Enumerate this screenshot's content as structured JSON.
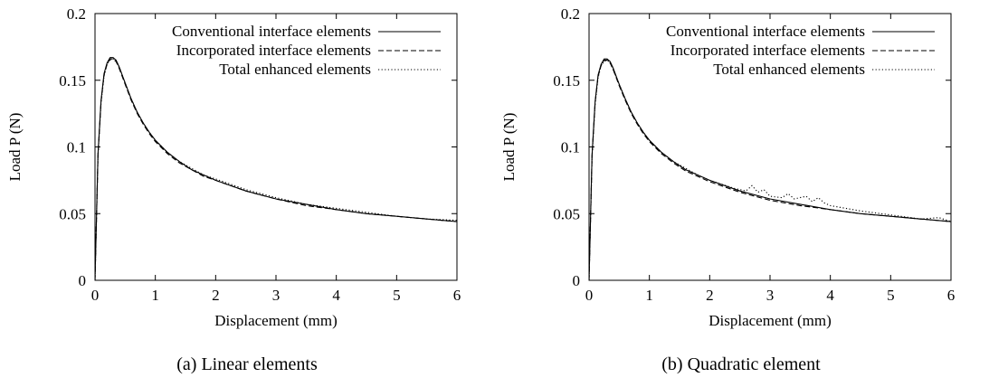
{
  "chart_data": [
    {
      "type": "line",
      "caption": "(a) Linear elements",
      "xlabel": "Displacement (mm)",
      "ylabel": "Load P (N)",
      "xlim": [
        0,
        6
      ],
      "ylim": [
        0,
        0.2
      ],
      "xticks": [
        "0",
        "1",
        "2",
        "3",
        "4",
        "5",
        "6"
      ],
      "yticks": [
        "0",
        "0.05",
        "0.1",
        "0.15",
        "0.2"
      ],
      "grid": false,
      "legend_position": "top-right",
      "series": [
        {
          "name": "Conventional interface elements",
          "style": "solid",
          "x": [
            0,
            0.05,
            0.1,
            0.15,
            0.2,
            0.25,
            0.3,
            0.35,
            0.4,
            0.5,
            0.6,
            0.7,
            0.8,
            0.9,
            1.0,
            1.2,
            1.4,
            1.6,
            1.8,
            2.0,
            2.5,
            3.0,
            3.5,
            4.0,
            4.5,
            5.0,
            5.5,
            6.0
          ],
          "y": [
            0,
            0.095,
            0.135,
            0.155,
            0.163,
            0.167,
            0.167,
            0.165,
            0.16,
            0.148,
            0.136,
            0.126,
            0.118,
            0.111,
            0.105,
            0.096,
            0.089,
            0.083,
            0.079,
            0.075,
            0.067,
            0.061,
            0.057,
            0.053,
            0.05,
            0.048,
            0.046,
            0.044
          ]
        },
        {
          "name": "Incorporated interface elements",
          "style": "dashed",
          "x": [
            0,
            0.05,
            0.1,
            0.15,
            0.2,
            0.25,
            0.3,
            0.35,
            0.4,
            0.5,
            0.6,
            0.7,
            0.8,
            0.9,
            1.0,
            1.2,
            1.4,
            1.6,
            1.8,
            2.0,
            2.5,
            3.0,
            3.5,
            4.0,
            4.5,
            5.0,
            5.5,
            6.0
          ],
          "y": [
            0,
            0.094,
            0.134,
            0.154,
            0.162,
            0.166,
            0.166,
            0.164,
            0.159,
            0.147,
            0.135,
            0.125,
            0.117,
            0.11,
            0.104,
            0.095,
            0.088,
            0.083,
            0.078,
            0.075,
            0.067,
            0.061,
            0.056,
            0.053,
            0.05,
            0.048,
            0.046,
            0.044
          ]
        },
        {
          "name": "Total enhanced elements",
          "style": "dotted",
          "x": [
            0,
            0.05,
            0.1,
            0.15,
            0.2,
            0.25,
            0.3,
            0.35,
            0.4,
            0.5,
            0.6,
            0.7,
            0.8,
            0.9,
            1.0,
            1.2,
            1.4,
            1.6,
            1.8,
            2.0,
            2.5,
            3.0,
            3.5,
            4.0,
            4.5,
            5.0,
            5.5,
            6.0
          ],
          "y": [
            0,
            0.093,
            0.133,
            0.153,
            0.162,
            0.165,
            0.166,
            0.165,
            0.16,
            0.148,
            0.136,
            0.126,
            0.118,
            0.111,
            0.105,
            0.096,
            0.089,
            0.084,
            0.079,
            0.076,
            0.068,
            0.062,
            0.057,
            0.054,
            0.051,
            0.048,
            0.046,
            0.045
          ]
        }
      ]
    },
    {
      "type": "line",
      "caption": "(b) Quadratic element",
      "xlabel": "Displacement (mm)",
      "ylabel": "Load P (N)",
      "xlim": [
        0,
        6
      ],
      "ylim": [
        0,
        0.2
      ],
      "xticks": [
        "0",
        "1",
        "2",
        "3",
        "4",
        "5",
        "6"
      ],
      "yticks": [
        "0",
        "0.05",
        "0.1",
        "0.15",
        "0.2"
      ],
      "grid": false,
      "legend_position": "top-right",
      "series": [
        {
          "name": "Conventional interface elements",
          "style": "solid",
          "x": [
            0,
            0.05,
            0.1,
            0.15,
            0.2,
            0.25,
            0.3,
            0.35,
            0.4,
            0.5,
            0.6,
            0.7,
            0.8,
            0.9,
            1.0,
            1.2,
            1.4,
            1.6,
            1.8,
            2.0,
            2.5,
            3.0,
            3.5,
            4.0,
            4.5,
            5.0,
            5.5,
            6.0
          ],
          "y": [
            0,
            0.094,
            0.134,
            0.154,
            0.162,
            0.166,
            0.166,
            0.164,
            0.159,
            0.147,
            0.136,
            0.126,
            0.118,
            0.111,
            0.105,
            0.096,
            0.089,
            0.083,
            0.079,
            0.075,
            0.067,
            0.061,
            0.057,
            0.053,
            0.05,
            0.048,
            0.046,
            0.044
          ]
        },
        {
          "name": "Incorporated interface elements",
          "style": "dashed",
          "x": [
            0,
            0.05,
            0.1,
            0.15,
            0.2,
            0.25,
            0.3,
            0.35,
            0.4,
            0.5,
            0.6,
            0.7,
            0.8,
            0.9,
            1.0,
            1.2,
            1.4,
            1.6,
            1.8,
            2.0,
            2.5,
            3.0,
            3.5,
            4.0,
            4.5,
            5.0,
            5.5,
            6.0
          ],
          "y": [
            0,
            0.093,
            0.133,
            0.153,
            0.161,
            0.165,
            0.165,
            0.163,
            0.158,
            0.146,
            0.135,
            0.125,
            0.117,
            0.11,
            0.104,
            0.095,
            0.088,
            0.082,
            0.078,
            0.074,
            0.066,
            0.06,
            0.056,
            0.053,
            0.05,
            0.048,
            0.046,
            0.044
          ]
        },
        {
          "name": "Total enhanced elements",
          "style": "dotted",
          "x": [
            0,
            0.05,
            0.1,
            0.15,
            0.2,
            0.25,
            0.3,
            0.35,
            0.4,
            0.5,
            0.6,
            0.7,
            0.8,
            0.9,
            1.0,
            1.2,
            1.4,
            1.6,
            1.8,
            2.0,
            2.2,
            2.4,
            2.6,
            2.7,
            2.8,
            2.9,
            3.0,
            3.2,
            3.3,
            3.4,
            3.6,
            3.7,
            3.8,
            3.9,
            4.0,
            4.5,
            5.0,
            5.5,
            5.8,
            6.0
          ],
          "y": [
            0,
            0.092,
            0.132,
            0.152,
            0.161,
            0.164,
            0.165,
            0.163,
            0.158,
            0.147,
            0.136,
            0.126,
            0.118,
            0.111,
            0.105,
            0.096,
            0.089,
            0.084,
            0.079,
            0.075,
            0.072,
            0.069,
            0.067,
            0.071,
            0.066,
            0.068,
            0.063,
            0.062,
            0.065,
            0.061,
            0.063,
            0.059,
            0.062,
            0.058,
            0.056,
            0.052,
            0.049,
            0.046,
            0.047,
            0.044
          ]
        }
      ]
    }
  ]
}
